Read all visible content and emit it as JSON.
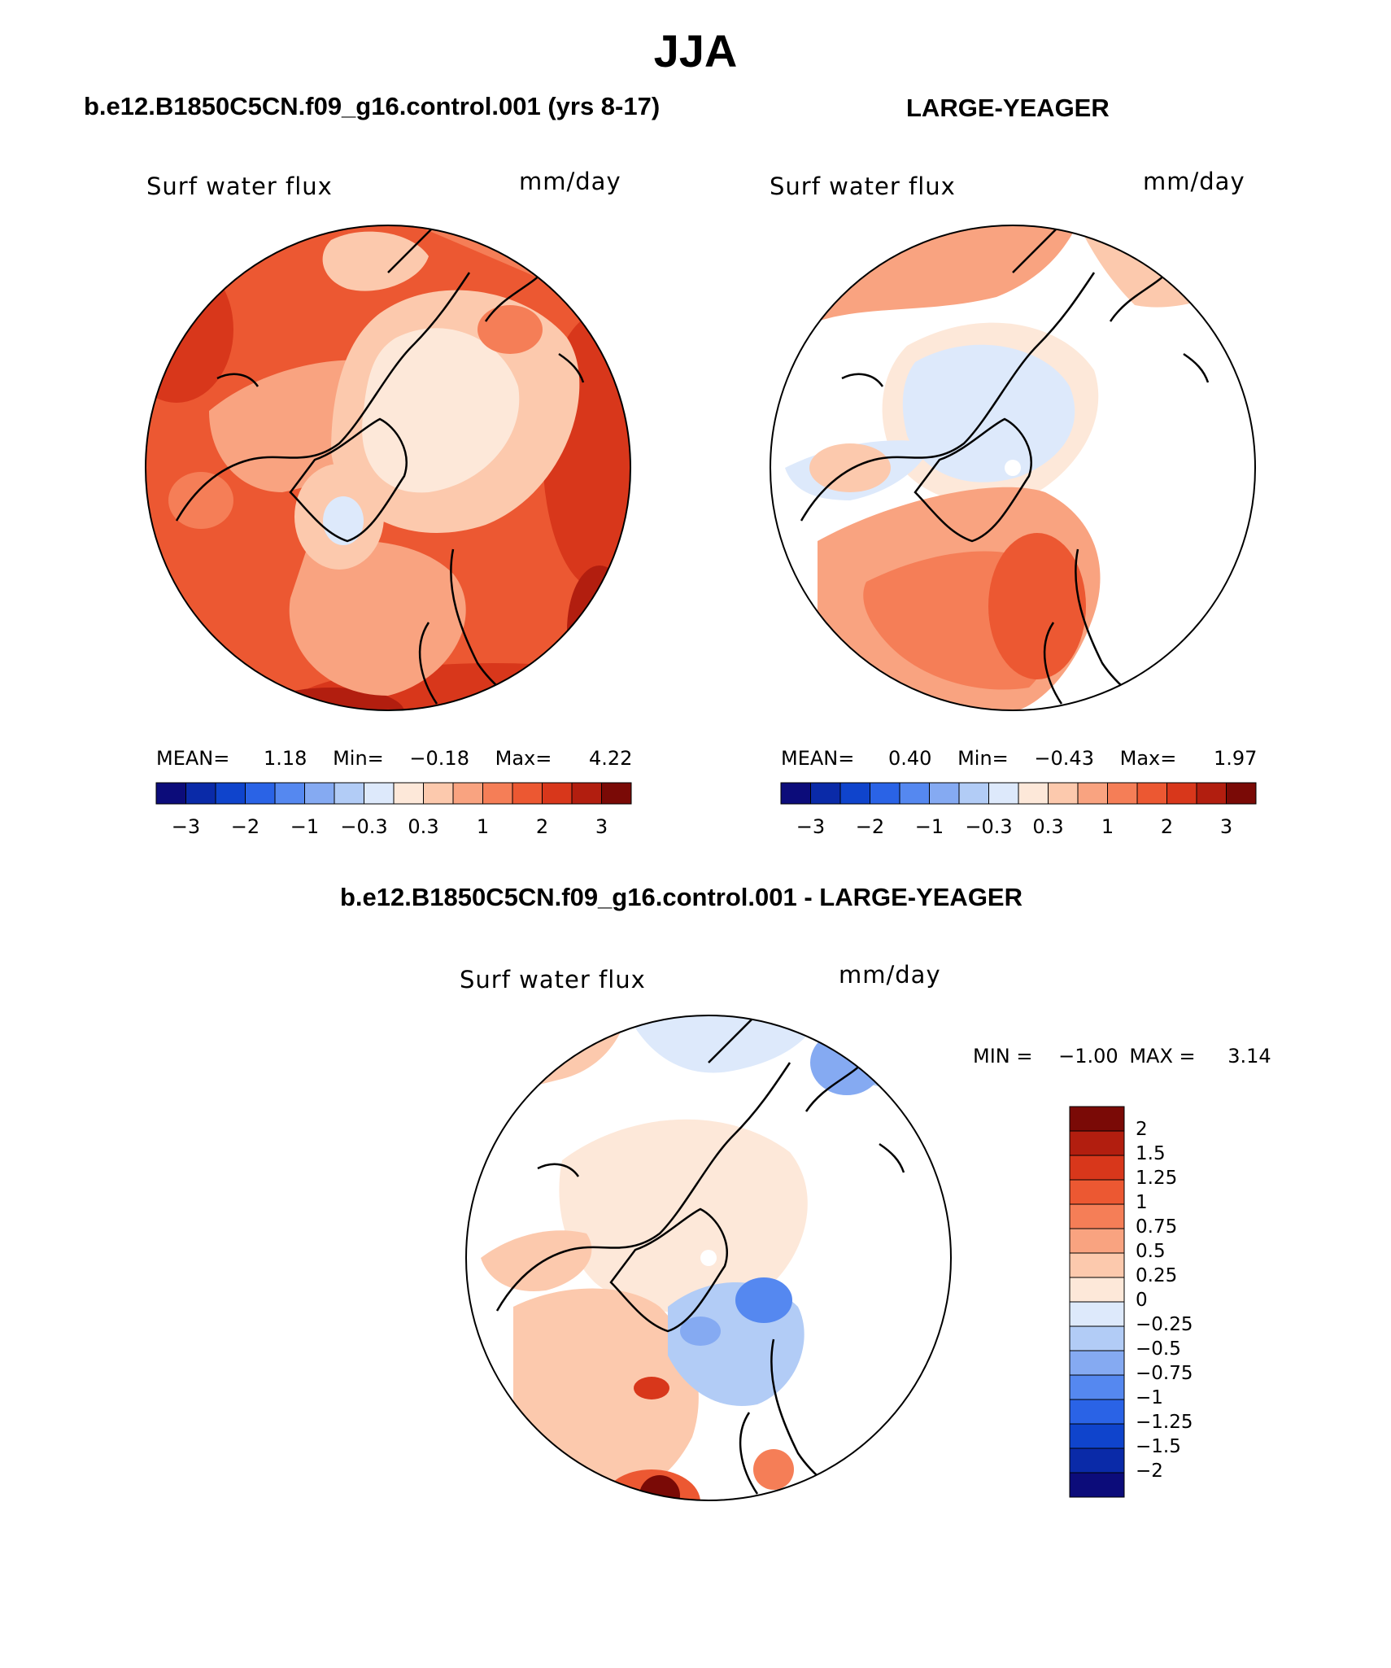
{
  "title": "JJA",
  "panels": [
    {
      "header": "b.e12.B1850C5CN.f09_g16.control.001 (yrs 8-17)",
      "field": "Surf water flux",
      "units": "mm/day",
      "stats": {
        "mean_label": "MEAN=",
        "mean": "1.18",
        "min_label": "Min=",
        "min": "−0.18",
        "max_label": "Max=",
        "max": "4.22"
      }
    },
    {
      "header": "LARGE-YEAGER",
      "field": "Surf water flux",
      "units": "mm/day",
      "stats": {
        "mean_label": "MEAN=",
        "mean": "0.40",
        "min_label": "Min=",
        "min": "−0.43",
        "max_label": "Max=",
        "max": "1.97"
      }
    },
    {
      "header": "b.e12.B1850C5CN.f09_g16.control.001 - LARGE-YEAGER",
      "field": "Surf water flux",
      "units": "mm/day",
      "minmax": {
        "min_label": "MIN =",
        "min": "−1.00",
        "max_label": "MAX =",
        "max": "3.14"
      }
    }
  ],
  "colorbar_h": {
    "colors": [
      "#0c0c7a",
      "#0a2aa8",
      "#0f44cc",
      "#2a63e6",
      "#5588f0",
      "#85aaf2",
      "#b2ccf6",
      "#dde9fb",
      "#fde8d9",
      "#fcc9ad",
      "#f9a380",
      "#f57e57",
      "#ec5832",
      "#d8371b",
      "#b21e0f",
      "#7a0a06"
    ],
    "ticks": [
      "−3",
      "−2",
      "−1",
      "−0.3",
      "0.3",
      "1",
      "2",
      "3"
    ]
  },
  "colorbar_v": {
    "colors": [
      "#7a0a06",
      "#b21e0f",
      "#d8371b",
      "#ec5832",
      "#f57e57",
      "#f9a380",
      "#fcc9ad",
      "#fde8d9",
      "#dde9fb",
      "#b2ccf6",
      "#85aaf2",
      "#5588f0",
      "#2a63e6",
      "#0f44cc",
      "#0a2aa8",
      "#0c0c7a"
    ],
    "ticks": [
      "2",
      "1.5",
      "1.25",
      "1",
      "0.75",
      "0.5",
      "0.25",
      "0",
      "−0.25",
      "−0.5",
      "−0.75",
      "−1",
      "−1.25",
      "−1.5",
      "−2"
    ]
  }
}
